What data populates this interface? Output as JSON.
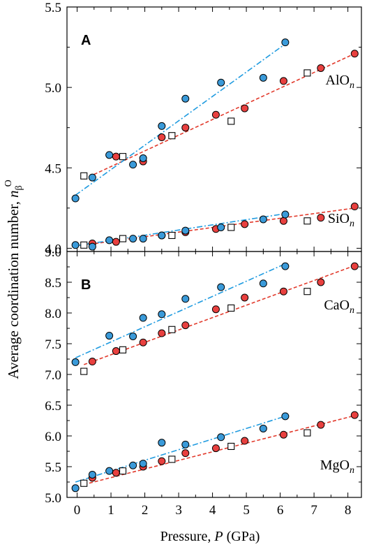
{
  "figure": {
    "ylabel_prefix": "Average coordination number,",
    "ylabel_symbol": "n",
    "ylabel_sub": "β",
    "ylabel_sup": "O",
    "xlabel_prefix": "Pressure,",
    "xlabel_symbol": "P",
    "xlabel_unit": "(GPa)"
  },
  "chart_data": [
    {
      "type": "scatter",
      "panel_label": "A",
      "xlim": [
        -0.3,
        8.4
      ],
      "ylim": [
        3.98,
        5.5
      ],
      "xticks": [
        0,
        1,
        2,
        3,
        4,
        5,
        6,
        7,
        8
      ],
      "yticks": [
        "4.0",
        "4.5",
        "5.0",
        "5.5"
      ],
      "grid": false,
      "colors": {
        "blue": "#3a9ad9",
        "red": "#e8403f",
        "blue_line": "#1f9be0",
        "red_line": "#e23a2c"
      },
      "groups": [
        {
          "label": "AlO",
          "label_sub": "n",
          "blue": [
            [
              -0.05,
              4.31
            ],
            [
              0.45,
              4.44
            ],
            [
              0.95,
              4.58
            ],
            [
              1.65,
              4.52
            ],
            [
              1.95,
              4.56
            ],
            [
              2.5,
              4.76
            ],
            [
              3.2,
              4.93
            ],
            [
              4.25,
              5.03
            ],
            [
              5.5,
              5.06
            ],
            [
              6.15,
              5.28
            ]
          ],
          "red": [
            [
              1.15,
              4.57
            ],
            [
              1.95,
              4.54
            ],
            [
              2.5,
              4.69
            ],
            [
              3.2,
              4.75
            ],
            [
              4.1,
              4.83
            ],
            [
              4.95,
              4.87
            ],
            [
              6.1,
              5.04
            ],
            [
              7.2,
              5.12
            ],
            [
              8.2,
              5.21
            ]
          ],
          "square": [
            [
              0.2,
              4.45
            ],
            [
              1.35,
              4.57
            ],
            [
              2.8,
              4.7
            ],
            [
              4.55,
              4.79
            ],
            [
              6.8,
              5.09
            ]
          ],
          "blue_fit": [
            [
              -0.05,
              4.33
            ],
            [
              6.15,
              5.27
            ]
          ],
          "red_fit": [
            [
              0.2,
              4.43
            ],
            [
              8.2,
              5.21
            ]
          ]
        },
        {
          "label": "SiO",
          "label_sub": "n",
          "blue": [
            [
              -0.05,
              4.02
            ],
            [
              0.45,
              4.01
            ],
            [
              0.95,
              4.05
            ],
            [
              1.65,
              4.06
            ],
            [
              1.95,
              4.06
            ],
            [
              2.5,
              4.08
            ],
            [
              3.2,
              4.11
            ],
            [
              4.25,
              4.13
            ],
            [
              5.5,
              4.18
            ],
            [
              6.15,
              4.21
            ]
          ],
          "red": [
            [
              0.45,
              4.03
            ],
            [
              1.15,
              4.04
            ],
            [
              2.5,
              4.08
            ],
            [
              3.2,
              4.1
            ],
            [
              4.1,
              4.12
            ],
            [
              4.95,
              4.15
            ],
            [
              6.1,
              4.17
            ],
            [
              7.2,
              4.19
            ],
            [
              8.2,
              4.26
            ]
          ],
          "square": [
            [
              0.2,
              4.02
            ],
            [
              1.35,
              4.06
            ],
            [
              2.8,
              4.08
            ],
            [
              4.55,
              4.13
            ],
            [
              6.8,
              4.17
            ]
          ],
          "blue_fit": [
            [
              -0.05,
              4.015
            ],
            [
              6.15,
              4.215
            ]
          ],
          "red_fit": [
            [
              0.2,
              4.02
            ],
            [
              8.2,
              4.25
            ]
          ]
        }
      ]
    },
    {
      "type": "scatter",
      "panel_label": "B",
      "xlim": [
        -0.3,
        8.4
      ],
      "ylim": [
        5.0,
        9.0
      ],
      "xticks": [
        0,
        1,
        2,
        3,
        4,
        5,
        6,
        7,
        8
      ],
      "yticks": [
        "5.0",
        "5.5",
        "6.0",
        "6.5",
        "7.0",
        "7.5",
        "8.0",
        "8.5",
        "9.0"
      ],
      "grid": false,
      "colors": {
        "blue": "#3a9ad9",
        "red": "#e8403f",
        "blue_line": "#1f9be0",
        "red_line": "#e23a2c"
      },
      "groups": [
        {
          "label": "CaO",
          "label_sub": "n",
          "blue": [
            [
              -0.05,
              7.2
            ],
            [
              0.95,
              7.63
            ],
            [
              1.65,
              7.62
            ],
            [
              1.95,
              7.92
            ],
            [
              2.5,
              7.98
            ],
            [
              3.2,
              8.23
            ],
            [
              4.25,
              8.42
            ],
            [
              5.5,
              8.48
            ],
            [
              6.15,
              8.76
            ]
          ],
          "red": [
            [
              0.45,
              7.21
            ],
            [
              1.15,
              7.38
            ],
            [
              1.95,
              7.52
            ],
            [
              2.5,
              7.67
            ],
            [
              3.2,
              7.8
            ],
            [
              4.1,
              8.06
            ],
            [
              4.95,
              8.25
            ],
            [
              6.1,
              8.35
            ],
            [
              7.2,
              8.5
            ],
            [
              8.2,
              8.76
            ]
          ],
          "square": [
            [
              0.2,
              7.05
            ],
            [
              1.35,
              7.4
            ],
            [
              2.8,
              7.73
            ],
            [
              4.55,
              8.08
            ],
            [
              6.8,
              8.35
            ]
          ],
          "blue_fit": [
            [
              -0.05,
              7.27
            ],
            [
              6.15,
              8.8
            ]
          ],
          "red_fit": [
            [
              0.2,
              7.16
            ],
            [
              8.2,
              8.77
            ]
          ]
        },
        {
          "label": "MgO",
          "label_sub": "n",
          "blue": [
            [
              -0.05,
              5.15
            ],
            [
              0.45,
              5.37
            ],
            [
              0.95,
              5.43
            ],
            [
              1.65,
              5.52
            ],
            [
              1.95,
              5.55
            ],
            [
              2.5,
              5.89
            ],
            [
              3.2,
              5.86
            ],
            [
              4.25,
              5.98
            ],
            [
              5.5,
              6.12
            ],
            [
              6.15,
              6.32
            ]
          ],
          "red": [
            [
              0.45,
              5.32
            ],
            [
              1.15,
              5.4
            ],
            [
              1.95,
              5.5
            ],
            [
              2.5,
              5.59
            ],
            [
              3.2,
              5.72
            ],
            [
              4.1,
              5.8
            ],
            [
              4.95,
              5.92
            ],
            [
              6.1,
              6.02
            ],
            [
              7.2,
              6.18
            ],
            [
              8.2,
              6.34
            ]
          ],
          "square": [
            [
              0.2,
              5.23
            ],
            [
              1.35,
              5.43
            ],
            [
              2.8,
              5.62
            ],
            [
              4.55,
              5.83
            ],
            [
              6.8,
              6.05
            ]
          ],
          "blue_fit": [
            [
              -0.05,
              5.25
            ],
            [
              6.15,
              6.32
            ]
          ],
          "red_fit": [
            [
              0.2,
              5.21
            ],
            [
              8.2,
              6.33
            ]
          ]
        }
      ]
    }
  ]
}
